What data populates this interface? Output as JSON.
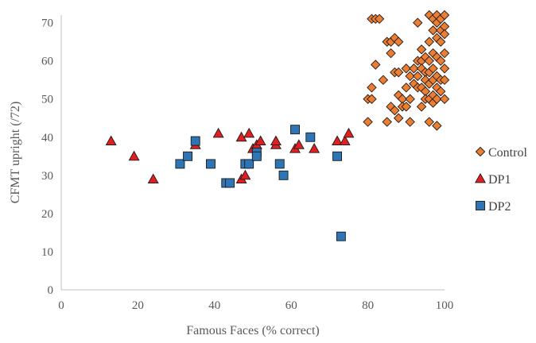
{
  "chart_data": {
    "type": "scatter",
    "xlabel": "Famous Faces (% correct)",
    "ylabel": "CFMT upright (/72)",
    "xlim": [
      0,
      100
    ],
    "ylim": [
      0,
      72
    ],
    "xticks": [
      0,
      20,
      40,
      60,
      80,
      100
    ],
    "yticks": [
      0,
      10,
      20,
      30,
      40,
      50,
      60,
      70
    ],
    "grid": false,
    "legend_position": "right",
    "series": [
      {
        "name": "Control",
        "marker": "diamond",
        "color": "#ED7D31",
        "points": [
          [
            81,
            71
          ],
          [
            82,
            71
          ],
          [
            80,
            50
          ],
          [
            80,
            44
          ],
          [
            81,
            53
          ],
          [
            81,
            50
          ],
          [
            82,
            59
          ],
          [
            83,
            71
          ],
          [
            84,
            55
          ],
          [
            85,
            44
          ],
          [
            85,
            65
          ],
          [
            86,
            65
          ],
          [
            86,
            48
          ],
          [
            86,
            62
          ],
          [
            87,
            57
          ],
          [
            87,
            47
          ],
          [
            87,
            66
          ],
          [
            88,
            65
          ],
          [
            88,
            57
          ],
          [
            88,
            51
          ],
          [
            88,
            45
          ],
          [
            89,
            50
          ],
          [
            89,
            48
          ],
          [
            90,
            58
          ],
          [
            90,
            53
          ],
          [
            90,
            48
          ],
          [
            91,
            56
          ],
          [
            91,
            50
          ],
          [
            91,
            44
          ],
          [
            92,
            58
          ],
          [
            92,
            54
          ],
          [
            93,
            70
          ],
          [
            93,
            60
          ],
          [
            93,
            56
          ],
          [
            93,
            53
          ],
          [
            94,
            63
          ],
          [
            94,
            60
          ],
          [
            94,
            58
          ],
          [
            94,
            53
          ],
          [
            94,
            48
          ],
          [
            95,
            61
          ],
          [
            95,
            57
          ],
          [
            95,
            55
          ],
          [
            95,
            52
          ],
          [
            95,
            50
          ],
          [
            96,
            72
          ],
          [
            96,
            65
          ],
          [
            96,
            60
          ],
          [
            96,
            57
          ],
          [
            96,
            54
          ],
          [
            96,
            50
          ],
          [
            96,
            44
          ],
          [
            97,
            71
          ],
          [
            97,
            68
          ],
          [
            97,
            62
          ],
          [
            97,
            58
          ],
          [
            97,
            55
          ],
          [
            97,
            51
          ],
          [
            97,
            49
          ],
          [
            98,
            72
          ],
          [
            98,
            70
          ],
          [
            98,
            66
          ],
          [
            98,
            61
          ],
          [
            98,
            56
          ],
          [
            98,
            53
          ],
          [
            98,
            50
          ],
          [
            98,
            43
          ],
          [
            99,
            71
          ],
          [
            99,
            68
          ],
          [
            99,
            65
          ],
          [
            99,
            60
          ],
          [
            99,
            55
          ],
          [
            99,
            52
          ],
          [
            100,
            72
          ],
          [
            100,
            69
          ],
          [
            100,
            67
          ],
          [
            100,
            62
          ],
          [
            100,
            58
          ],
          [
            100,
            55
          ],
          [
            100,
            50
          ]
        ]
      },
      {
        "name": "DP1",
        "marker": "triangle",
        "color": "#E02020",
        "points": [
          [
            13,
            39
          ],
          [
            19,
            35
          ],
          [
            24,
            29
          ],
          [
            35,
            38
          ],
          [
            41,
            41
          ],
          [
            47,
            29
          ],
          [
            47,
            40
          ],
          [
            48,
            30
          ],
          [
            49,
            41
          ],
          [
            50,
            37
          ],
          [
            51,
            38
          ],
          [
            52,
            39
          ],
          [
            56,
            38
          ],
          [
            56,
            39
          ],
          [
            61,
            37
          ],
          [
            62,
            38
          ],
          [
            66,
            37
          ],
          [
            72,
            39
          ],
          [
            74,
            39
          ],
          [
            75,
            41
          ]
        ]
      },
      {
        "name": "DP2",
        "marker": "square",
        "color": "#2E75B6",
        "points": [
          [
            31,
            33
          ],
          [
            33,
            35
          ],
          [
            35,
            39
          ],
          [
            39,
            33
          ],
          [
            43,
            28
          ],
          [
            44,
            28
          ],
          [
            48,
            33
          ],
          [
            49,
            33
          ],
          [
            51,
            36
          ],
          [
            51,
            35
          ],
          [
            57,
            33
          ],
          [
            58,
            30
          ],
          [
            61,
            42
          ],
          [
            65,
            40
          ],
          [
            72,
            35
          ],
          [
            73,
            14
          ]
        ]
      }
    ]
  }
}
